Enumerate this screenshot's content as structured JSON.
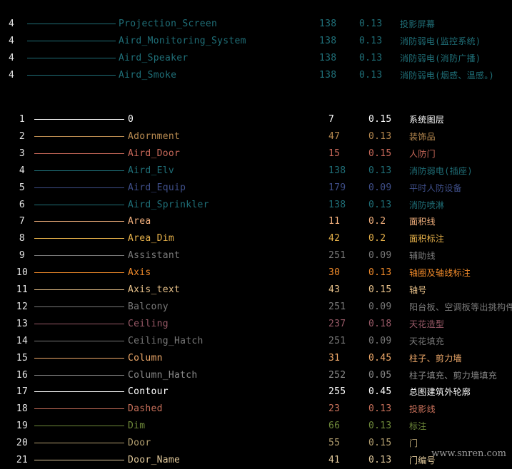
{
  "top_rows": [
    {
      "num": "4",
      "name": "Projection_Screen",
      "color_index": "138",
      "width": "0.13",
      "desc": "投影屏幕",
      "color": "#1f6f78"
    },
    {
      "num": "4",
      "name": "Aird_Monitoring_System",
      "color_index": "138",
      "width": "0.13",
      "desc": "消防弱电(监控系统)",
      "color": "#1f6f78"
    },
    {
      "num": "4",
      "name": "Aird_Speaker",
      "color_index": "138",
      "width": "0.13",
      "desc": "消防弱电(消防广播)",
      "color": "#1f6f78"
    },
    {
      "num": "4",
      "name": "Aird_Smoke",
      "color_index": "138",
      "width": "0.13",
      "desc": "消防弱电(烟感、温感。)",
      "color": "#1f6f78"
    }
  ],
  "layer_rows": [
    {
      "num": "1",
      "name": "0",
      "color_index": "7",
      "width": "0.15",
      "desc": "系统图层",
      "color": "#ffffff"
    },
    {
      "num": "2",
      "name": "Adornment",
      "color_index": "47",
      "width": "0.13",
      "desc": "装饰品",
      "color": "#b88a50"
    },
    {
      "num": "3",
      "name": "Aird_Door",
      "color_index": "15",
      "width": "0.15",
      "desc": "人防门",
      "color": "#c9695a"
    },
    {
      "num": "4",
      "name": "Aird_Elv",
      "color_index": "138",
      "width": "0.13",
      "desc": "消防弱电(插座)",
      "color": "#1f6f78"
    },
    {
      "num": "5",
      "name": "Aird_Equip",
      "color_index": "179",
      "width": "0.09",
      "desc": "平时人防设备",
      "color": "#3f4f8a"
    },
    {
      "num": "6",
      "name": "Aird_Sprinkler",
      "color_index": "138",
      "width": "0.13",
      "desc": "消防喷淋",
      "color": "#1f6f78"
    },
    {
      "num": "7",
      "name": "Area",
      "color_index": "11",
      "width": "0.2",
      "desc": "面积线",
      "color": "#f5b27e"
    },
    {
      "num": "8",
      "name": "Area_Dim",
      "color_index": "42",
      "width": "0.2",
      "desc": "面积标注",
      "color": "#e8b24a"
    },
    {
      "num": "9",
      "name": "Assistant",
      "color_index": "251",
      "width": "0.09",
      "desc": "辅助线",
      "color": "#7a7a7a"
    },
    {
      "num": "10",
      "name": "Axis",
      "color_index": "30",
      "width": "0.13",
      "desc": "轴圈及轴线标注",
      "color": "#f08a2a"
    },
    {
      "num": "11",
      "name": "Axis_text",
      "color_index": "43",
      "width": "0.15",
      "desc": "轴号",
      "color": "#e9c28a"
    },
    {
      "num": "12",
      "name": "Balcony",
      "color_index": "251",
      "width": "0.09",
      "desc": "阳台板、空调板等出挑构件",
      "color": "#7a7a7a"
    },
    {
      "num": "13",
      "name": "Ceiling",
      "color_index": "237",
      "width": "0.18",
      "desc": "天花造型",
      "color": "#9a5a68"
    },
    {
      "num": "14",
      "name": "Ceiling_Hatch",
      "color_index": "251",
      "width": "0.09",
      "desc": "天花填充",
      "color": "#7a7a7a"
    },
    {
      "num": "15",
      "name": "Column",
      "color_index": "31",
      "width": "0.45",
      "desc": "柱子、剪力墙",
      "color": "#f0aa6a"
    },
    {
      "num": "16",
      "name": "Column_Hatch",
      "color_index": "252",
      "width": "0.05",
      "desc": "柱子填充、剪力墙填充",
      "color": "#8a8a8a"
    },
    {
      "num": "17",
      "name": "Contour",
      "color_index": "255",
      "width": "0.45",
      "desc": "总图建筑外轮廓",
      "color": "#ffffff"
    },
    {
      "num": "18",
      "name": "Dashed",
      "color_index": "23",
      "width": "0.13",
      "desc": "投影线",
      "color": "#c8705a"
    },
    {
      "num": "19",
      "name": "Dim",
      "color_index": "66",
      "width": "0.13",
      "desc": "标注",
      "color": "#6f8a3a"
    },
    {
      "num": "20",
      "name": "Door",
      "color_index": "55",
      "width": "0.15",
      "desc": "门",
      "color": "#b4a070"
    },
    {
      "num": "21",
      "name": "Door_Name",
      "color_index": "41",
      "width": "0.13",
      "desc": "门编号",
      "color": "#e0c89a"
    }
  ],
  "watermark": "www.snren.com"
}
